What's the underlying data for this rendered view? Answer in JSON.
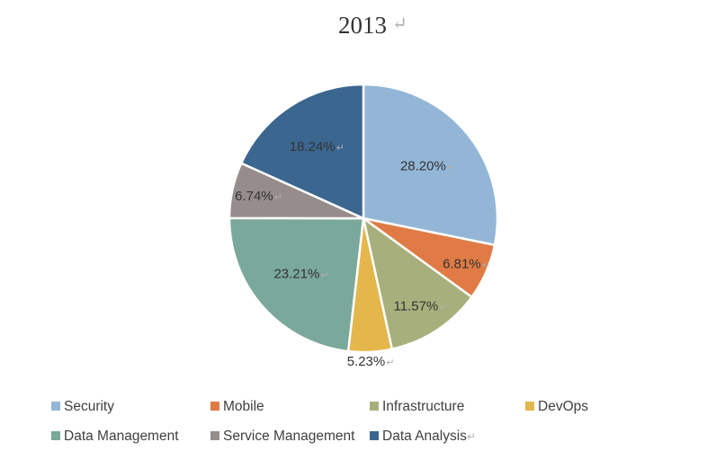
{
  "chart_data": {
    "type": "pie",
    "title": "2013",
    "categories": [
      "Security",
      "Mobile",
      "Infrastructure",
      "DevOps",
      "Data Management",
      "Service Management",
      "Data Analysis"
    ],
    "values": [
      28.2,
      6.81,
      11.57,
      5.23,
      23.21,
      6.74,
      18.24
    ],
    "labels": [
      "28.20%",
      "6.81%",
      "11.57%",
      "5.23%",
      "23.21%",
      "6.74%",
      "18.24%"
    ],
    "colors": [
      "#93b6d6",
      "#e07b45",
      "#a7b07c",
      "#e4b74c",
      "#7aa89b",
      "#978c8c",
      "#3b6690"
    ],
    "legend_position": "bottom",
    "start_angle": "12 o'clock, clockwise"
  }
}
